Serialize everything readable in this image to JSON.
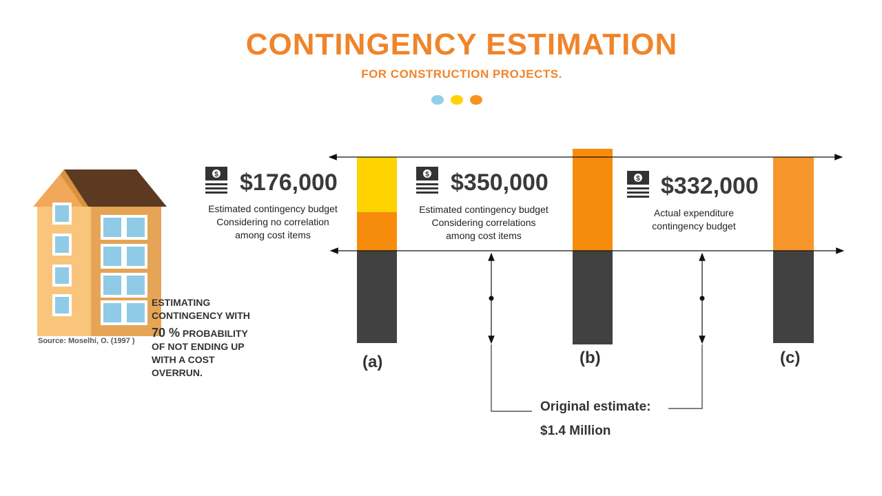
{
  "title": "CONTINGENCY ESTIMATION",
  "subtitle": "FOR CONSTRUCTION  PROJECTS.",
  "colors": {
    "title": "#F0842A",
    "dot_blue": "#8FD0EA",
    "dot_yellow": "#FFD200",
    "dot_orange": "#F7931E",
    "bar_dark": "#414141",
    "bar_orange": "#F78C0C",
    "bar_yellow": "#FFD300",
    "bar_orange_c": "#F7962A"
  },
  "items": [
    {
      "amount": "$176,000",
      "description": [
        "Estimated contingency budget",
        "Considering no correlation",
        "among cost items"
      ],
      "bar_label": "(a)"
    },
    {
      "amount": "$350,000",
      "description": [
        "Estimated contingency budget",
        "Considering correlations",
        "among cost items"
      ],
      "bar_label": "(b)"
    },
    {
      "amount": "$332,000",
      "description": [
        "Actual expenditure",
        "contingency budget"
      ],
      "bar_label": "(c)"
    }
  ],
  "note": {
    "line1": "ESTIMATING",
    "line2": "CONTINGENCY WITH",
    "pct": "70  %",
    "line3": " PROBABILITY",
    "line4": "OF NOT ENDING UP",
    "line5": "WITH A COST",
    "line6": "OVERRUN."
  },
  "source": "Source:  Moselhi, O. (1997 )",
  "original_estimate": {
    "label": "Original estimate:",
    "value": "$1.4  Million"
  },
  "icons": [
    "building-illustration",
    "money-document-icon",
    "double-arrow-icon"
  ]
}
